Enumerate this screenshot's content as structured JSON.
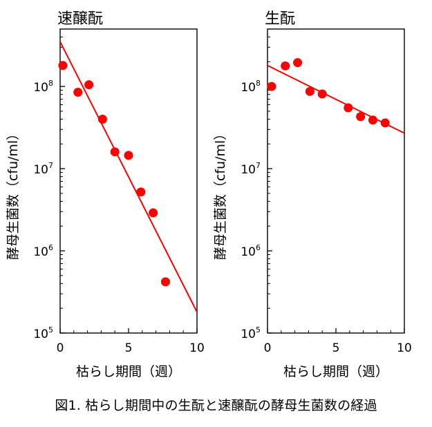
{
  "caption": "図1. 枯らし期間中の生酛と速醸酛の酵母生菌数の経過",
  "chart_data": [
    {
      "type": "scatter",
      "title": "速醸酛",
      "xlabel": "枯らし期間（週）",
      "ylabel": "酵母生菌数（cfu/ml）",
      "xlim": [
        0,
        10
      ],
      "ylim": [
        100000,
        500000000
      ],
      "yscale": "log",
      "xticks": [
        0,
        5,
        10
      ],
      "xtick_labels": [
        "0",
        "5",
        "10"
      ],
      "yticks": [
        100000,
        1000000,
        10000000,
        100000000
      ],
      "ytick_labels": [
        {
          "base": "10",
          "exp": "5"
        },
        {
          "base": "10",
          "exp": "6"
        },
        {
          "base": "10",
          "exp": "7"
        },
        {
          "base": "10",
          "exp": "8"
        }
      ],
      "grid": false,
      "marker_color": "#ff0000",
      "line_color": "#ff0000",
      "points": [
        {
          "x": 0.2,
          "y": 180000000
        },
        {
          "x": 1.3,
          "y": 85000000
        },
        {
          "x": 2.1,
          "y": 105000000
        },
        {
          "x": 3.1,
          "y": 40000000
        },
        {
          "x": 4.0,
          "y": 16000000
        },
        {
          "x": 5.0,
          "y": 14500000
        },
        {
          "x": 5.9,
          "y": 5200000
        },
        {
          "x": 6.8,
          "y": 2900000
        },
        {
          "x": 7.7,
          "y": 420000
        }
      ],
      "trendline": [
        {
          "x": 0,
          "y": 350000000
        },
        {
          "x": 10,
          "y": 180000
        }
      ]
    },
    {
      "type": "scatter",
      "title": "生酛",
      "xlabel": "枯らし期間（週）",
      "ylabel": "酵母生菌数（cfu/ml）",
      "xlim": [
        0,
        10
      ],
      "ylim": [
        100000,
        500000000
      ],
      "yscale": "log",
      "xticks": [
        0,
        5,
        10
      ],
      "xtick_labels": [
        "0",
        "5",
        "10"
      ],
      "yticks": [
        100000,
        1000000,
        10000000,
        100000000
      ],
      "ytick_labels": [
        {
          "base": "10",
          "exp": "5"
        },
        {
          "base": "10",
          "exp": "6"
        },
        {
          "base": "10",
          "exp": "7"
        },
        {
          "base": "10",
          "exp": "8"
        }
      ],
      "grid": false,
      "marker_color": "#ff0000",
      "line_color": "#ff0000",
      "points": [
        {
          "x": 0.3,
          "y": 100000000
        },
        {
          "x": 1.3,
          "y": 178000000
        },
        {
          "x": 2.2,
          "y": 195000000
        },
        {
          "x": 3.1,
          "y": 87000000
        },
        {
          "x": 4.0,
          "y": 81000000
        },
        {
          "x": 5.9,
          "y": 55000000
        },
        {
          "x": 6.8,
          "y": 43000000
        },
        {
          "x": 7.7,
          "y": 39000000
        },
        {
          "x": 8.6,
          "y": 36000000
        }
      ],
      "trendline": [
        {
          "x": 0,
          "y": 180000000
        },
        {
          "x": 10,
          "y": 27000000
        }
      ]
    }
  ]
}
